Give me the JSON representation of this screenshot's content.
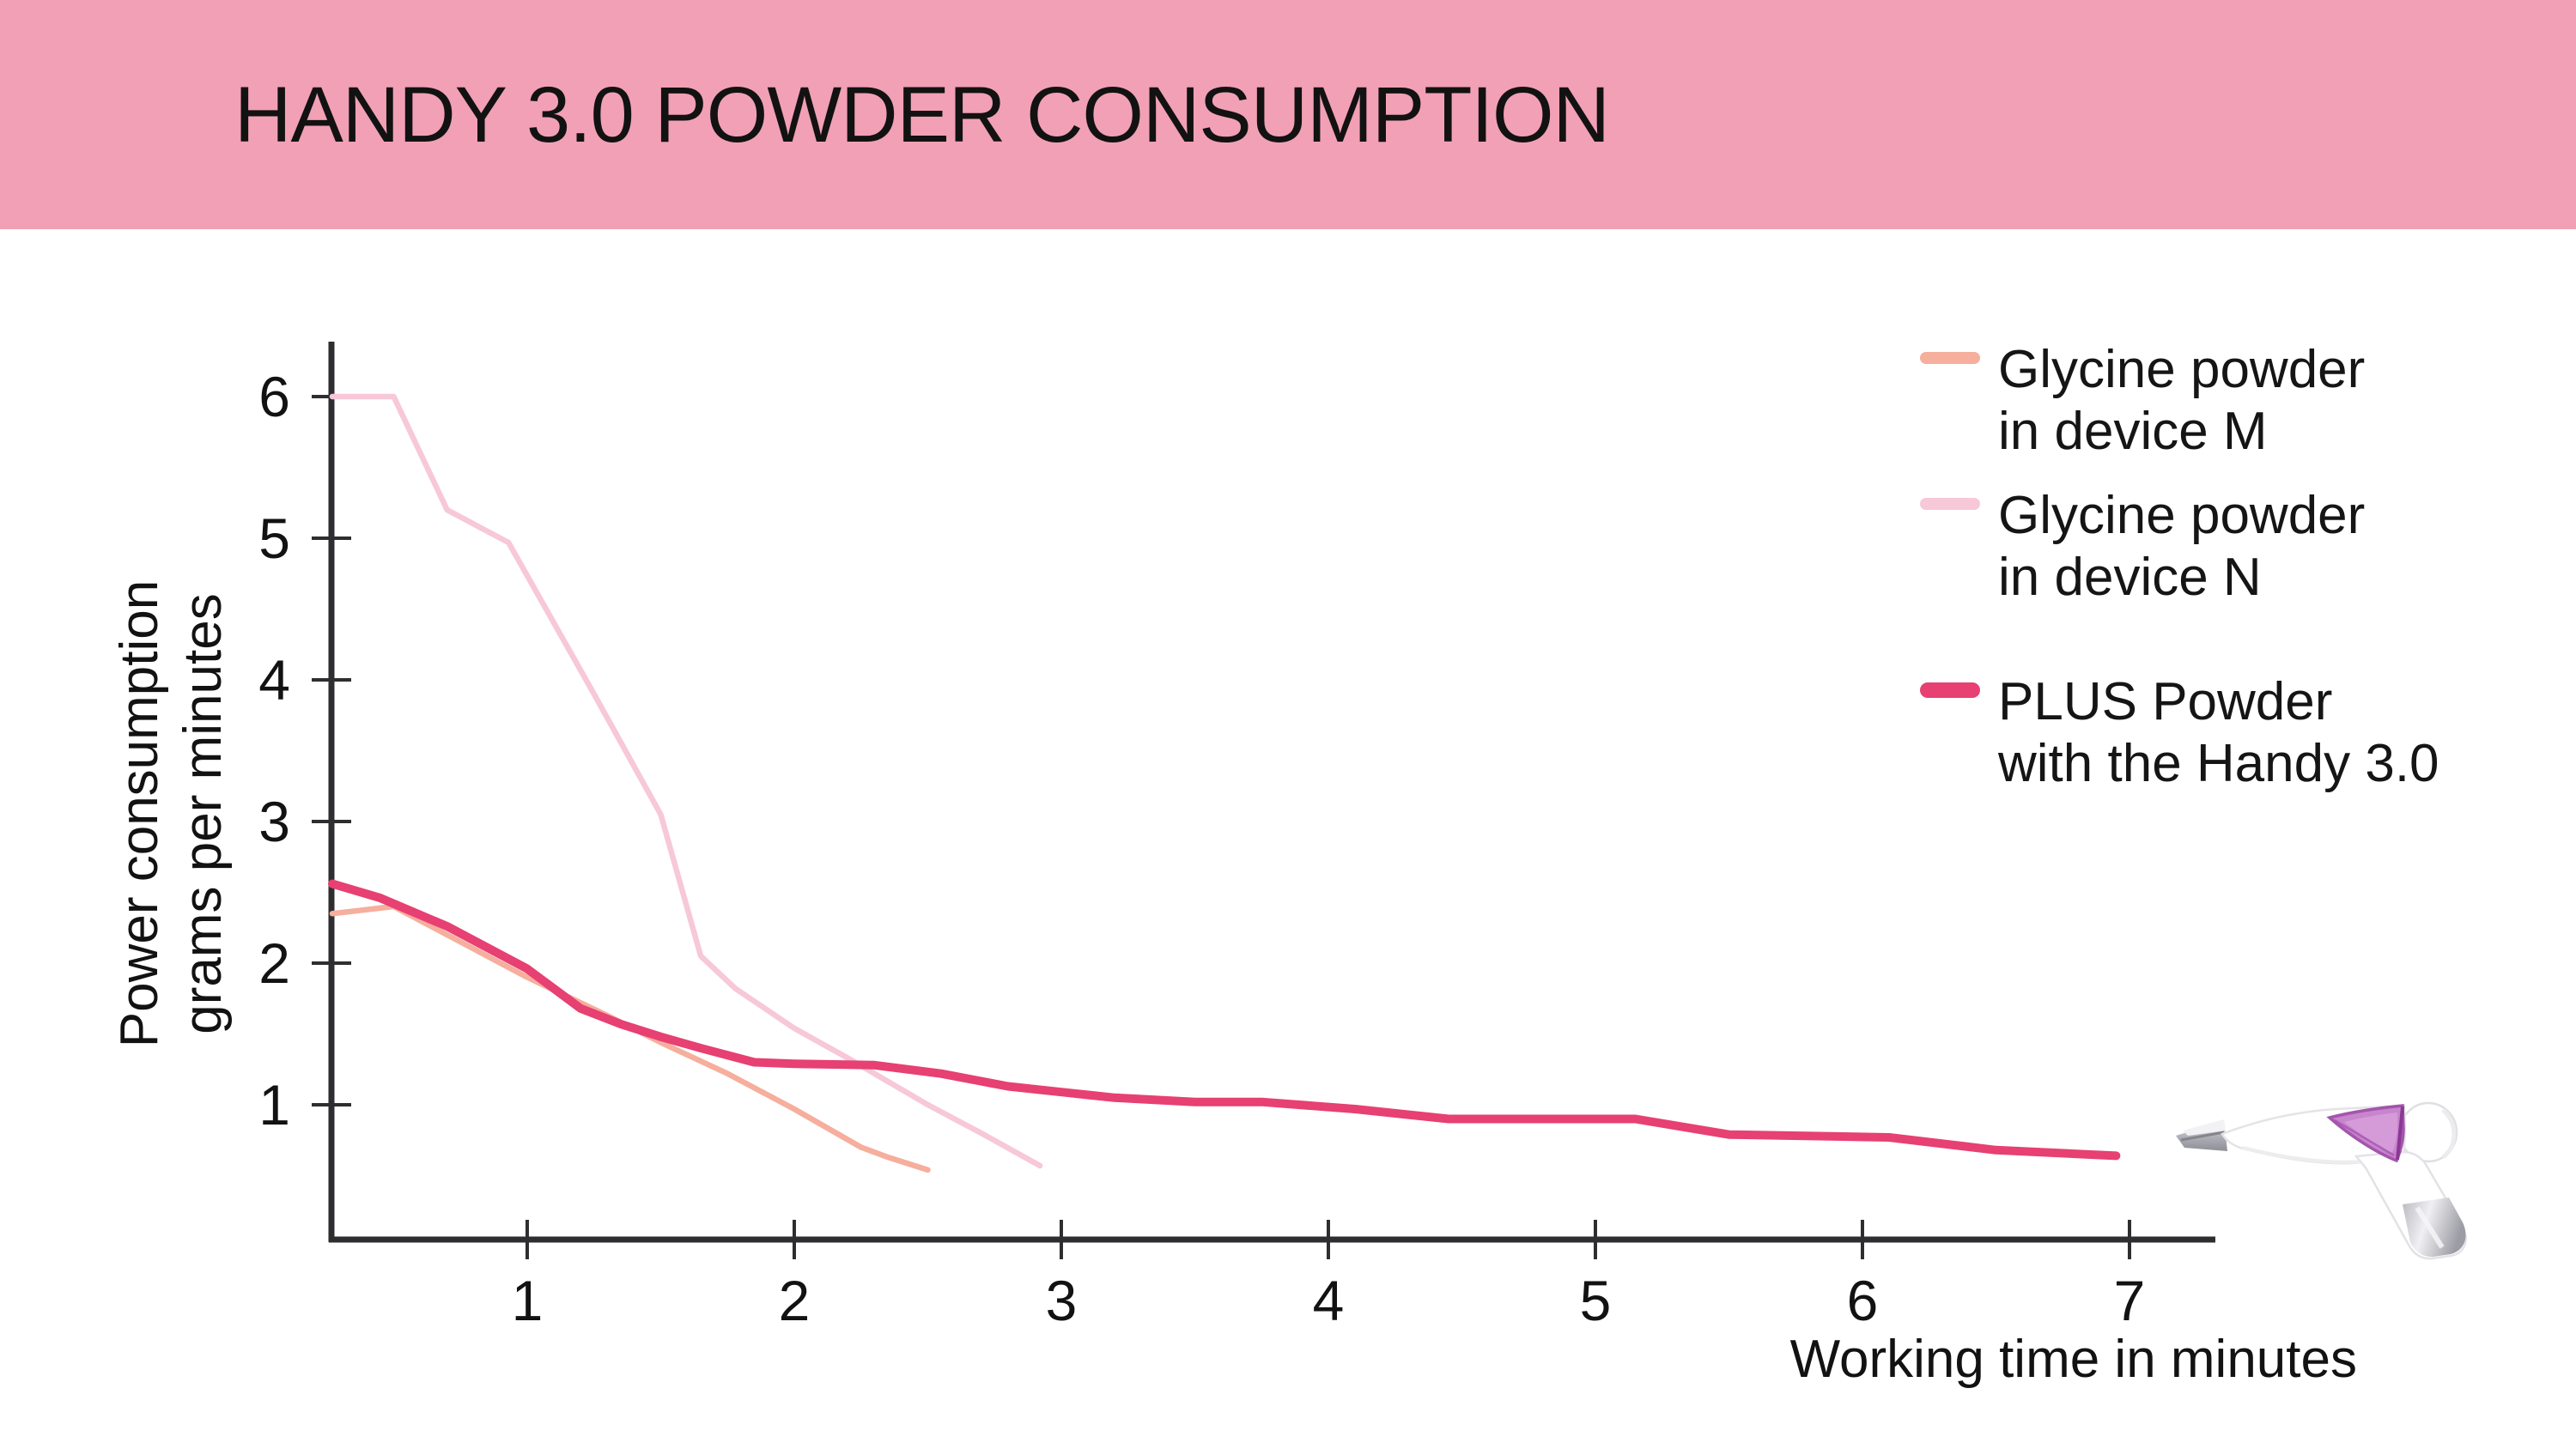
{
  "header": {
    "title": "HANDY 3.0 POWDER CONSUMPTION",
    "background_color": "#F2A0B5",
    "text_color": "#121212"
  },
  "legend": {
    "position": "top-right",
    "items": [
      {
        "line1": "Glycine powder",
        "line2": "in device M",
        "color": "#F6AE9D"
      },
      {
        "line1": "Glycine powder",
        "line2": "in device N",
        "color": "#F7C8D8"
      },
      {
        "line1": "PLUS Powder",
        "line2": "with the Handy 3.0",
        "color": "#E74072"
      }
    ]
  },
  "axes": {
    "xlabel": "Working time in minutes",
    "ylabel_line1": "Power consumption",
    "ylabel_line2": "grams per minutes",
    "axis_color": "#2E2E30",
    "tick_label_color": "#121212"
  },
  "chart_data": {
    "type": "line",
    "title": "HANDY 3.0 POWDER CONSUMPTION",
    "xlabel": "Working time in minutes",
    "ylabel": "Power consumption grams per minutes",
    "x_ticks": [
      1,
      2,
      3,
      4,
      5,
      6,
      7
    ],
    "y_ticks": [
      1,
      2,
      3,
      4,
      5,
      6
    ],
    "xlim": [
      0.27,
      7.35
    ],
    "ylim": [
      0,
      6.4
    ],
    "grid": false,
    "legend_position": "top-right",
    "series": [
      {
        "name": "Glycine powder in device M",
        "color": "#F6AE9D",
        "stroke_width": 6.5,
        "points": [
          [
            0.27,
            2.35
          ],
          [
            0.5,
            2.4
          ],
          [
            0.72,
            2.18
          ],
          [
            0.9,
            2.0
          ],
          [
            1.0,
            1.9
          ],
          [
            1.3,
            1.63
          ],
          [
            1.5,
            1.44
          ],
          [
            1.75,
            1.22
          ],
          [
            2.0,
            0.97
          ],
          [
            2.25,
            0.7
          ],
          [
            2.35,
            0.63
          ],
          [
            2.5,
            0.54
          ]
        ]
      },
      {
        "name": "Glycine powder in device N",
        "color": "#F7C8D8",
        "stroke_width": 6.5,
        "points": [
          [
            0.27,
            6.0
          ],
          [
            0.5,
            6.0
          ],
          [
            0.7,
            5.2
          ],
          [
            0.93,
            4.97
          ],
          [
            1.25,
            3.9
          ],
          [
            1.5,
            3.05
          ],
          [
            1.65,
            2.05
          ],
          [
            1.78,
            1.82
          ],
          [
            2.0,
            1.54
          ],
          [
            2.2,
            1.33
          ],
          [
            2.5,
            1.0
          ],
          [
            2.7,
            0.8
          ],
          [
            2.92,
            0.57
          ]
        ]
      },
      {
        "name": "PLUS Powder with the Handy 3.0",
        "color": "#E74072",
        "stroke_width": 10,
        "points": [
          [
            0.27,
            2.56
          ],
          [
            0.45,
            2.46
          ],
          [
            0.7,
            2.26
          ],
          [
            0.9,
            2.06
          ],
          [
            1.0,
            1.96
          ],
          [
            1.2,
            1.68
          ],
          [
            1.35,
            1.57
          ],
          [
            1.5,
            1.48
          ],
          [
            1.65,
            1.4
          ],
          [
            1.85,
            1.3
          ],
          [
            2.0,
            1.29
          ],
          [
            2.3,
            1.28
          ],
          [
            2.55,
            1.22
          ],
          [
            2.8,
            1.13
          ],
          [
            3.0,
            1.09
          ],
          [
            3.2,
            1.05
          ],
          [
            3.5,
            1.02
          ],
          [
            3.75,
            1.02
          ],
          [
            4.1,
            0.97
          ],
          [
            4.45,
            0.9
          ],
          [
            5.15,
            0.9
          ],
          [
            5.5,
            0.79
          ],
          [
            6.1,
            0.77
          ],
          [
            6.5,
            0.68
          ],
          [
            6.95,
            0.64
          ]
        ]
      }
    ]
  },
  "device_image": {
    "alt": "Handy 3.0 handpiece"
  }
}
